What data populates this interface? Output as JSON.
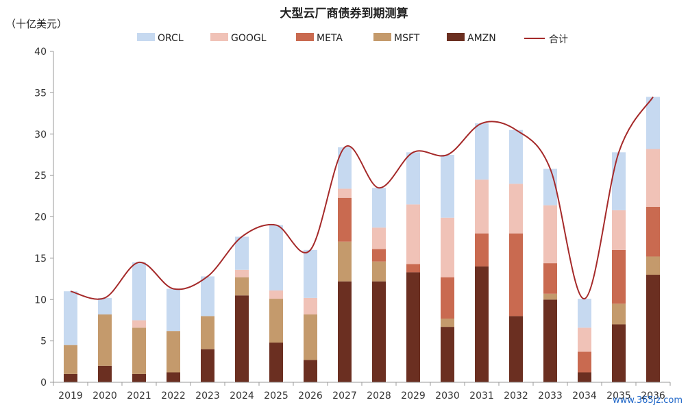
{
  "chart_data": {
    "type": "bar",
    "stacked": true,
    "title": "大型云厂商债券到期测算",
    "unit_label": "（十亿美元）",
    "categories": [
      "2019",
      "2020",
      "2021",
      "2022",
      "2023",
      "2024",
      "2025",
      "2026",
      "2027",
      "2028",
      "2029",
      "2030",
      "2031",
      "2032",
      "2033",
      "2034",
      "2035",
      "2036"
    ],
    "ylim": [
      0,
      40
    ],
    "yticks": [
      0,
      5,
      10,
      15,
      20,
      25,
      30,
      35,
      40
    ],
    "series": [
      {
        "name": "AMZN",
        "color": "#6b2f21",
        "values": [
          1.0,
          2.0,
          1.0,
          1.2,
          4.0,
          10.5,
          4.8,
          2.7,
          12.2,
          12.2,
          13.3,
          6.7,
          14.0,
          8.0,
          10.0,
          1.2,
          7.0,
          13.0
        ]
      },
      {
        "name": "MSFT",
        "color": "#c49a6c",
        "values": [
          3.5,
          6.2,
          5.6,
          5.0,
          4.0,
          2.2,
          5.3,
          5.5,
          4.8,
          2.4,
          0.0,
          1.0,
          0.0,
          0.0,
          0.7,
          0.0,
          2.5,
          2.2
        ]
      },
      {
        "name": "META",
        "color": "#c96a50",
        "values": [
          0.0,
          0.0,
          0.0,
          0.0,
          0.0,
          0.0,
          0.0,
          0.0,
          5.3,
          1.5,
          1.0,
          5.0,
          4.0,
          10.0,
          3.7,
          2.5,
          6.5,
          6.0
        ]
      },
      {
        "name": "GOOGL",
        "color": "#f0c2b7",
        "values": [
          0.0,
          0.0,
          0.9,
          0.0,
          0.0,
          0.9,
          1.0,
          2.0,
          1.1,
          2.6,
          7.2,
          7.2,
          6.5,
          6.0,
          7.0,
          2.9,
          4.8,
          7.0
        ]
      },
      {
        "name": "ORCL",
        "color": "#c6d9f0",
        "values": [
          6.5,
          2.0,
          7.0,
          5.1,
          4.8,
          4.0,
          7.9,
          5.8,
          5.0,
          4.8,
          6.3,
          7.6,
          6.8,
          6.5,
          4.4,
          3.5,
          7.0,
          6.3
        ]
      }
    ],
    "total_series": {
      "name": "合计",
      "color": "#a52a2a",
      "values": [
        11.0,
        10.2,
        14.5,
        11.3,
        12.8,
        17.6,
        19.0,
        16.0,
        28.4,
        23.5,
        27.8,
        27.5,
        31.3,
        30.5,
        25.8,
        10.1,
        27.8,
        34.5
      ]
    },
    "legend": {
      "position": "top",
      "order": [
        "ORCL",
        "GOOGL",
        "META",
        "MSFT",
        "AMZN",
        "合计"
      ]
    },
    "grid": false
  },
  "watermark": "www.365jz.com"
}
